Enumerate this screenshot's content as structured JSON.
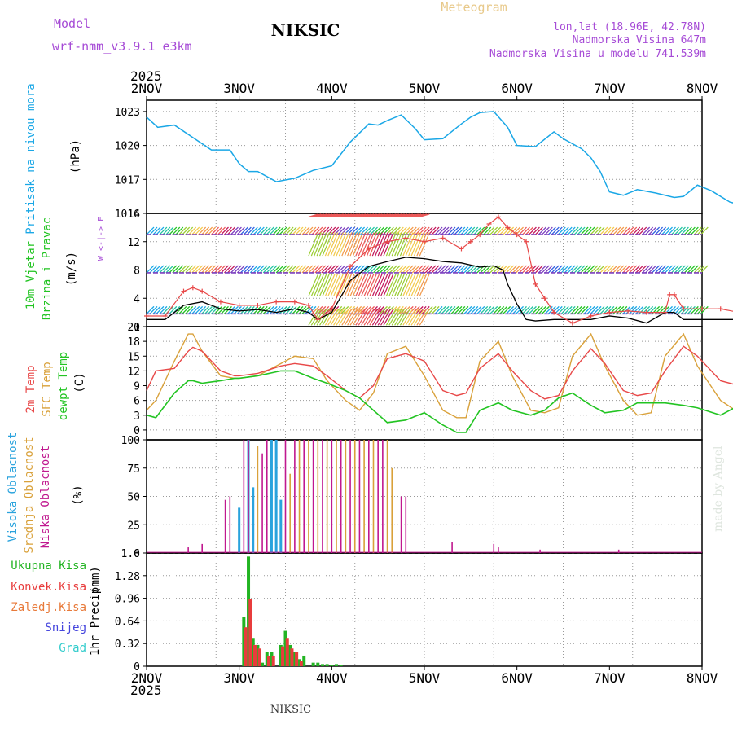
{
  "header": {
    "model_label": "Model",
    "model_name": "wrf-nmm_v3.9.1 e3km",
    "title": "NIKSIC",
    "subtitle": "Meteogram",
    "lonlat": "lon,lat (18.96E, 42.78N)",
    "altitude": "Nadmorska Visina 647m",
    "model_altitude": "Nadmorska Visina u modelu 741.539m"
  },
  "footer": {
    "station": "NIKSIC",
    "credit": "made by Angel"
  },
  "colors": {
    "pressure": "#1aa7e6",
    "wind_speed_line": "#000000",
    "wind_gust": "#e84848",
    "temp2m": "#e84848",
    "sfc_temp": "#d9a13a",
    "dewpoint": "#22c422",
    "cloud_high": "#2aa3dd",
    "cloud_mid": "#d9a13a",
    "cloud_low": "#c0188f",
    "precip_total": "#22b422",
    "precip_conv": "#e83c3c",
    "precip_snow": "#4545dd",
    "precip_grad": "#33cccc"
  },
  "chart_data": [
    {
      "type": "line",
      "id": "pressure",
      "ylabel": "Pritisak na nivou mora",
      "unit": "(hPa)",
      "ylim": [
        1014,
        1024
      ],
      "yticks": [
        1014,
        1017,
        1020,
        1023
      ],
      "top_year": "2025",
      "bottom_year": "2025",
      "x_ticks": [
        "2NOV",
        "3NOV",
        "4NOV",
        "5NOV",
        "6NOV",
        "7NOV",
        "8NOV"
      ],
      "series": [
        {
          "name": "Pressure (hPa)",
          "x": [
            0,
            0.12,
            0.3,
            0.5,
            0.7,
            0.9,
            1.0,
            1.1,
            1.2,
            1.4,
            1.6,
            1.8,
            2.0,
            2.2,
            2.4,
            2.5,
            2.6,
            2.75,
            2.9,
            3.0,
            3.2,
            3.4,
            3.5,
            3.6,
            3.75,
            3.9,
            4.0,
            4.2,
            4.4,
            4.5,
            4.7,
            4.8,
            4.9,
            5.0,
            5.15,
            5.3,
            5.5,
            5.7,
            5.8,
            5.95,
            6.1,
            6.3,
            6.5,
            6.7,
            6.8,
            6.9,
            7.0,
            7.1,
            7.2,
            7.4,
            7.5,
            7.6,
            7.7,
            7.8,
            8.0
          ],
          "y": [
            1022.5,
            1021.6,
            1021.8,
            1020.7,
            1019.6,
            1019.6,
            1018.4,
            1017.7,
            1017.7,
            1016.8,
            1017.1,
            1017.8,
            1018.2,
            1020.3,
            1021.9,
            1021.8,
            1022.2,
            1022.7,
            1021.5,
            1020.5,
            1020.6,
            1021.9,
            1022.5,
            1022.9,
            1023.0,
            1021.6,
            1020.0,
            1019.9,
            1021.2,
            1020.6,
            1019.7,
            1018.9,
            1017.7,
            1015.9,
            1015.6,
            1016.1,
            1015.8,
            1015.4,
            1015.5,
            1016.5,
            1016.0,
            1015.0,
            1014.6,
            1014.8,
            1015.4,
            1016.4,
            1016.9,
            1016.5,
            1017.0,
            1016.8,
            1016.5,
            1016.4,
            1016.8,
            1016.5,
            1016.2
          ]
        }
      ]
    },
    {
      "type": "line",
      "id": "wind",
      "ylabel_line1": "10m Vjetar",
      "ylabel_line2": "Brzina i Pravac",
      "unit": "(m/s)",
      "compass": "W <-|-> E",
      "ylim": [
        0,
        16
      ],
      "yticks": [
        0,
        4,
        8,
        12,
        16
      ],
      "series": [
        {
          "name": "Wind speed (m/s)",
          "x": [
            0,
            0.2,
            0.4,
            0.6,
            0.8,
            1.0,
            1.2,
            1.4,
            1.6,
            1.75,
            1.85,
            2.0,
            2.2,
            2.4,
            2.6,
            2.8,
            3.0,
            3.2,
            3.4,
            3.6,
            3.75,
            3.85,
            3.9,
            4.0,
            4.1,
            4.2,
            4.4,
            4.6,
            4.8,
            5.0,
            5.2,
            5.4,
            5.6,
            5.7,
            5.8,
            6.0,
            6.4,
            6.8,
            7.2,
            7.5,
            7.6,
            7.7,
            7.8,
            8.0
          ],
          "y": [
            1,
            1,
            3,
            3.5,
            2.5,
            2.2,
            2.4,
            2.0,
            2.5,
            2.0,
            1.0,
            2,
            6.5,
            8.5,
            9.2,
            9.8,
            9.6,
            9.2,
            9.0,
            8.4,
            8.6,
            8.0,
            6.0,
            3.2,
            1.0,
            0.8,
            1,
            1,
            1,
            1.5,
            1.2,
            0.5,
            2.0,
            2.0,
            1.0,
            1.0,
            1.0,
            1.0,
            1.0,
            1.0,
            2.0,
            1.0,
            0.5,
            1.0
          ]
        },
        {
          "name": "Wind gust (m/s)",
          "x": [
            0,
            0.2,
            0.4,
            0.5,
            0.6,
            0.8,
            1.0,
            1.2,
            1.4,
            1.6,
            1.75,
            1.85,
            2.0,
            2.2,
            2.4,
            2.6,
            2.8,
            3.0,
            3.2,
            3.4,
            3.5,
            3.6,
            3.7,
            3.8,
            3.9,
            4.0,
            4.1,
            4.2,
            4.3,
            4.4,
            4.6,
            4.8,
            5.0,
            5.2,
            5.4,
            5.6,
            5.65,
            5.7,
            5.8,
            6.0,
            6.2,
            6.4,
            6.6,
            6.8,
            7.0,
            7.2,
            7.4,
            7.5,
            7.6,
            7.7,
            7.8,
            8.0
          ],
          "y": [
            1.5,
            1.5,
            5,
            5.5,
            5,
            3.5,
            3,
            3,
            3.5,
            3.5,
            3,
            1,
            2.5,
            8.5,
            11,
            12,
            12.5,
            12,
            12.5,
            11,
            12,
            13,
            14.5,
            15.5,
            14,
            13,
            12,
            6,
            4,
            2,
            0.5,
            1.5,
            2,
            2.2,
            2.0,
            2.0,
            4.5,
            4.5,
            2.5,
            2.5,
            2.5,
            2.0,
            2.0,
            2.0,
            1.5,
            1.2,
            1.5,
            1.5,
            2.5,
            1.2,
            0.8,
            1.0
          ]
        }
      ]
    },
    {
      "type": "line",
      "id": "temperature",
      "ylabel_line1": "2m Temp",
      "ylabel_line2": "SFC Temp",
      "ylabel_line3": "dewpt Temp",
      "unit": "(C)",
      "ylim": [
        -2,
        21
      ],
      "yticks": [
        0,
        3,
        6,
        9,
        12,
        15,
        18,
        21
      ],
      "series": [
        {
          "name": "2m Temp",
          "x": [
            0,
            0.1,
            0.3,
            0.45,
            0.5,
            0.6,
            0.8,
            0.95,
            1.0,
            1.2,
            1.45,
            1.6,
            1.8,
            1.95,
            2.15,
            2.3,
            2.45,
            2.6,
            2.8,
            3.0,
            3.2,
            3.35,
            3.45,
            3.6,
            3.8,
            3.95,
            4.15,
            4.3,
            4.45,
            4.6,
            4.8,
            4.95,
            5.15,
            5.3,
            5.45,
            5.6,
            5.8,
            5.95,
            6.2,
            6.4,
            6.55,
            6.7,
            6.9,
            7.0,
            7.2,
            7.4,
            7.55,
            7.7,
            7.9,
            8.0
          ],
          "y": [
            8,
            12,
            12.5,
            16,
            16.8,
            16,
            12,
            11,
            11,
            11.5,
            13,
            13.5,
            13,
            11,
            8,
            6.5,
            9,
            14.5,
            15.5,
            14,
            8,
            7,
            7.5,
            12.5,
            15.5,
            12,
            8,
            6.3,
            7,
            12,
            16.5,
            13.5,
            8,
            7,
            7.5,
            12,
            17,
            15,
            10,
            9,
            7.5,
            7.5,
            12.5,
            14,
            15.5,
            13,
            10,
            9.5,
            9.5,
            9.3
          ]
        },
        {
          "name": "SFC Temp",
          "x": [
            0,
            0.1,
            0.3,
            0.45,
            0.5,
            0.6,
            0.8,
            0.95,
            1.0,
            1.2,
            1.45,
            1.6,
            1.8,
            1.95,
            2.15,
            2.3,
            2.45,
            2.6,
            2.8,
            3.0,
            3.2,
            3.35,
            3.45,
            3.6,
            3.8,
            3.95,
            4.15,
            4.3,
            4.45,
            4.6,
            4.8,
            4.95,
            5.15,
            5.3,
            5.45,
            5.6,
            5.8,
            5.95,
            6.2,
            6.4,
            6.55,
            6.7,
            6.9,
            7.0,
            7.2,
            7.4,
            7.55,
            7.7,
            7.9,
            8.0
          ],
          "y": [
            4,
            6,
            14,
            19.5,
            19.5,
            16,
            11,
            10.5,
            10.5,
            11,
            13.5,
            15,
            14.5,
            10,
            6,
            4,
            7.5,
            15.5,
            17,
            11,
            4,
            2.5,
            2.5,
            14,
            18,
            11,
            4,
            3.5,
            4.5,
            15,
            19.5,
            13,
            6,
            3,
            3.5,
            15,
            19.5,
            13,
            6,
            3.5,
            2.5,
            2.5,
            14,
            17,
            18.5,
            12,
            7,
            6,
            6,
            5
          ]
        },
        {
          "name": "dewpt Temp",
          "x": [
            0,
            0.1,
            0.3,
            0.45,
            0.5,
            0.6,
            0.8,
            0.95,
            1.0,
            1.2,
            1.45,
            1.6,
            1.8,
            1.95,
            2.15,
            2.3,
            2.45,
            2.6,
            2.8,
            3.0,
            3.2,
            3.35,
            3.45,
            3.6,
            3.8,
            3.95,
            4.15,
            4.3,
            4.45,
            4.6,
            4.8,
            4.95,
            5.15,
            5.3,
            5.45,
            5.6,
            5.8,
            5.95,
            6.2,
            6.4,
            6.55,
            6.7,
            6.9,
            7.0,
            7.2,
            7.4,
            7.55,
            7.7,
            7.9,
            8.0
          ],
          "y": [
            3,
            2.5,
            7.5,
            10,
            10,
            9.5,
            10,
            10.5,
            10.5,
            11,
            12,
            12,
            10.5,
            9.5,
            8,
            6.5,
            4,
            1.5,
            2,
            3.5,
            1,
            -0.5,
            -0.5,
            4,
            5.5,
            4,
            3,
            4,
            6.5,
            7.5,
            5,
            3.5,
            4,
            5.5,
            5.5,
            5.5,
            5,
            4.5,
            3,
            5,
            6.5,
            5.5,
            5.5,
            7,
            9,
            8,
            7,
            6,
            6.5,
            6
          ]
        }
      ]
    },
    {
      "type": "bar",
      "id": "cloud",
      "ylabel_line1": "Visoka Oblacnost",
      "ylabel_line2": "Srednja Oblacnost",
      "ylabel_line3": "Niska Oblacnost",
      "unit": "(%)",
      "ylim": [
        0,
        100
      ],
      "yticks": [
        0,
        25,
        50,
        75,
        100
      ],
      "series": [
        {
          "name": "Visoka Oblacnost",
          "x": [
            1.0,
            1.1,
            1.15,
            1.35,
            1.4,
            1.45
          ],
          "values": [
            40,
            100,
            58,
            100,
            100,
            47
          ]
        },
        {
          "name": "Srednja Oblacnost",
          "x": [
            1.2,
            1.55,
            1.65,
            1.75,
            1.85,
            1.95,
            2.05,
            2.15,
            2.25,
            2.35,
            2.45,
            2.6,
            2.65
          ],
          "values": [
            95,
            70,
            100,
            100,
            100,
            100,
            100,
            100,
            100,
            100,
            100,
            100,
            75
          ]
        },
        {
          "name": "Niska Oblacnost",
          "x": [
            0.45,
            0.6,
            0.85,
            0.9,
            1.05,
            1.1,
            1.25,
            1.3,
            1.5,
            1.6,
            1.7,
            1.8,
            1.9,
            2.0,
            2.1,
            2.2,
            2.3,
            2.4,
            2.5,
            2.55,
            2.75,
            2.8,
            3.3,
            3.75,
            3.8,
            4.25,
            5.1,
            6.8,
            6.85,
            7.4,
            7.55,
            7.7,
            7.8,
            7.85
          ],
          "values": [
            5,
            8,
            47,
            50,
            100,
            100,
            88,
            100,
            100,
            100,
            100,
            100,
            100,
            100,
            100,
            100,
            100,
            100,
            100,
            100,
            50,
            50,
            10,
            8,
            5,
            3,
            3,
            5,
            6,
            10,
            22,
            25,
            25,
            20
          ]
        }
      ]
    },
    {
      "type": "bar",
      "id": "precip",
      "ylabel": "1hr Precip",
      "unit": "(mm)",
      "ylim": [
        0,
        1.6
      ],
      "yticks": [
        0,
        0.32,
        0.64,
        0.96,
        1.28,
        1.6
      ],
      "legend": [
        "Ukupna Kisa",
        "Konvek.Kisa",
        "Zaledj.Kisa",
        "Snijeg",
        "Grad"
      ],
      "series": [
        {
          "name": "Ukupna Kisa",
          "x": [
            1.05,
            1.1,
            1.15,
            1.2,
            1.25,
            1.3,
            1.35,
            1.45,
            1.5,
            1.55,
            1.6,
            1.65,
            1.7,
            1.8,
            1.85,
            1.9,
            1.95,
            2.0,
            2.05,
            2.1,
            7.65,
            7.8
          ],
          "values": [
            0.7,
            1.55,
            0.4,
            0.3,
            0.05,
            0.2,
            0.2,
            0.3,
            0.5,
            0.3,
            0.2,
            0.1,
            0.15,
            0.05,
            0.05,
            0.03,
            0.03,
            0.02,
            0.03,
            0.02,
            0.08,
            0.02
          ]
        },
        {
          "name": "Konvek.Kisa",
          "x": [
            1.07,
            1.12,
            1.17,
            1.22,
            1.32,
            1.37,
            1.47,
            1.52,
            1.57,
            1.62,
            1.67
          ],
          "values": [
            0.55,
            0.95,
            0.3,
            0.25,
            0.15,
            0.15,
            0.28,
            0.4,
            0.25,
            0.2,
            0.08
          ]
        },
        {
          "name": "Zaledj.Kisa",
          "x": [],
          "values": []
        },
        {
          "name": "Snijeg",
          "x": [],
          "values": []
        },
        {
          "name": "Grad",
          "x": [],
          "values": []
        }
      ]
    }
  ]
}
